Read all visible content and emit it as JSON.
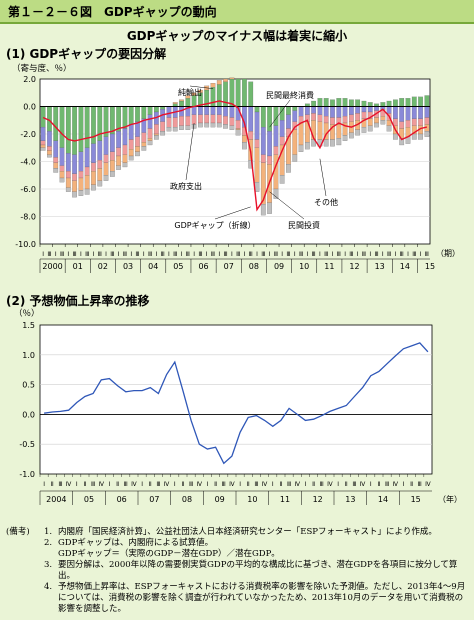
{
  "figure_title": "第１－２－６図　GDPギャップの動向",
  "main_title": "GDPギャップのマイナス幅は着実に縮小",
  "section1_title": "(1)  GDPギャップの要因分解",
  "section2_title": "(2)  予想物価上昇率の推移",
  "notes_label": "(備考)",
  "notes": [
    {
      "num": "1.",
      "text": "内閣府「国民経済計算」、公益社団法人日本経済研究センター「ESPフォーキャスト」により作成。"
    },
    {
      "num": "2.",
      "text": "GDPギャップは、内閣府による試算値。"
    },
    {
      "num": "",
      "text": "GDPギャップ＝（実際のGDP－潜在GDP）／潜在GDP。"
    },
    {
      "num": "3.",
      "text": "要因分解は、2000年以降の需要側実質GDPの平均的な構成比に基づき、潜在GDPを各項目に按分して算出。"
    },
    {
      "num": "4.",
      "text": "予想物価上昇率は、ESPフォーキャストにおける消費税率の影響を除いた予測値。ただし、2013年4～9月については、消費税の影響を除く調査が行われていなかったため、2013年10月のデータを用いて消費税の影響を調整した。"
    }
  ],
  "chart_data": [
    {
      "type": "bar",
      "subtype": "stacked bar with line",
      "title": "(1)  GDPギャップの要因分解",
      "ylabel": "（寄与度、％）",
      "xlabel": "（期）",
      "ylim": [
        -10,
        2
      ],
      "yticks": [
        "2.0",
        "0.0",
        "-2.0",
        "-4.0",
        "-6.0",
        "-8.0",
        "-10.0"
      ],
      "quarter_marks": [
        "Ⅰ",
        "Ⅲ"
      ],
      "year_labels": [
        "2000",
        "01",
        "02",
        "03",
        "04",
        "05",
        "06",
        "07",
        "08",
        "09",
        "10",
        "11",
        "12",
        "13",
        "14",
        "15"
      ],
      "annotations": [
        "純輸出",
        "民間最終消費",
        "政府支出",
        "GDPギャップ（折線）",
        "民間投資",
        "その他"
      ],
      "colors": {
        "net_exports": "#70b870",
        "consumption": "#8a8ad8",
        "government": "#ef9a9a",
        "investment": "#f3b27c",
        "other": "#bfbfbf",
        "gap": "#e8102a"
      },
      "series": [
        {
          "name": "純輸出",
          "values": [
            -1.5,
            -1.8,
            -2.5,
            -3.0,
            -3.4,
            -3.5,
            -3.3,
            -3.0,
            -2.7,
            -2.5,
            -2.2,
            -2.0,
            -1.8,
            -1.6,
            -1.3,
            -1.1,
            -0.9,
            -0.6,
            -0.4,
            -0.2,
            0.0,
            0.2,
            0.4,
            0.6,
            0.8,
            1.0,
            1.2,
            1.4,
            1.6,
            1.8,
            2.0,
            2.0,
            2.0,
            1.8,
            -0.4,
            -1.5,
            -1.8,
            -1.4,
            -1.0,
            -0.6,
            -0.3,
            0.0,
            0.2,
            0.4,
            0.6,
            0.6,
            0.5,
            0.6,
            0.6,
            0.5,
            0.5,
            0.4,
            0.3,
            0.2,
            0.3,
            0.4,
            0.5,
            0.6,
            0.6,
            0.7,
            0.7,
            0.8
          ]
        },
        {
          "name": "民間最終消費",
          "values": [
            -1.0,
            -1.1,
            -1.2,
            -1.3,
            -1.3,
            -1.4,
            -1.4,
            -1.4,
            -1.4,
            -1.4,
            -1.3,
            -1.3,
            -1.2,
            -1.2,
            -1.1,
            -1.1,
            -1.0,
            -1.0,
            -0.9,
            -0.9,
            -0.8,
            -0.8,
            -0.7,
            -0.7,
            -0.6,
            -0.6,
            -0.6,
            -0.6,
            -0.6,
            -0.7,
            -0.8,
            -1.0,
            -1.5,
            -1.8,
            -2.0,
            -2.0,
            -1.8,
            -1.5,
            -1.2,
            -1.0,
            -0.8,
            -0.7,
            -0.6,
            -0.5,
            -0.6,
            -0.7,
            -0.8,
            -0.8,
            -0.7,
            -0.6,
            -0.5,
            -0.4,
            -0.4,
            -0.3,
            -0.2,
            -0.5,
            -0.9,
            -1.1,
            -1.0,
            -0.9,
            -0.9,
            -0.8
          ]
        },
        {
          "name": "政府支出",
          "values": [
            -0.3,
            -0.3,
            -0.4,
            -0.4,
            -0.5,
            -0.5,
            -0.5,
            -0.6,
            -0.6,
            -0.6,
            -0.6,
            -0.6,
            -0.6,
            -0.7,
            -0.7,
            -0.7,
            -0.7,
            -0.7,
            -0.7,
            -0.7,
            -0.7,
            -0.7,
            -0.7,
            -0.7,
            -0.7,
            -0.6,
            -0.6,
            -0.6,
            -0.6,
            -0.6,
            -0.6,
            -0.6,
            -0.6,
            -0.6,
            -0.6,
            -0.6,
            -0.6,
            -0.6,
            -0.6,
            -0.6,
            -0.6,
            -0.5,
            -0.5,
            -0.5,
            -0.5,
            -0.5,
            -0.5,
            -0.5,
            -0.5,
            -0.5,
            -0.5,
            -0.5,
            -0.5,
            -0.5,
            -0.5,
            -0.5,
            -0.5,
            -0.5,
            -0.5,
            -0.5,
            -0.5,
            -0.5
          ]
        },
        {
          "name": "民間投資",
          "values": [
            -0.2,
            -0.3,
            -0.4,
            -0.5,
            -0.7,
            -0.8,
            -0.9,
            -1.0,
            -1.0,
            -0.9,
            -0.9,
            -0.8,
            -0.7,
            -0.6,
            -0.5,
            -0.4,
            -0.3,
            -0.2,
            -0.1,
            0.0,
            0.0,
            0.1,
            0.1,
            0.2,
            0.2,
            0.2,
            0.3,
            0.3,
            0.3,
            0.2,
            0.1,
            -0.1,
            -0.5,
            -1.5,
            -2.5,
            -3.0,
            -2.8,
            -2.5,
            -2.2,
            -2.0,
            -1.8,
            -1.6,
            -1.5,
            -1.4,
            -1.3,
            -1.2,
            -1.1,
            -1.0,
            -0.9,
            -0.8,
            -0.7,
            -0.6,
            -0.5,
            -0.4,
            -0.3,
            -0.4,
            -0.6,
            -0.7,
            -0.7,
            -0.6,
            -0.6,
            -0.5
          ]
        },
        {
          "name": "その他",
          "values": [
            -0.2,
            -0.2,
            -0.3,
            -0.3,
            -0.3,
            -0.4,
            -0.4,
            -0.4,
            -0.4,
            -0.4,
            -0.4,
            -0.4,
            -0.3,
            -0.3,
            -0.3,
            -0.3,
            -0.3,
            -0.3,
            -0.3,
            -0.3,
            -0.3,
            -0.3,
            -0.3,
            -0.3,
            -0.3,
            -0.3,
            -0.3,
            -0.3,
            -0.3,
            -0.3,
            -0.3,
            -0.4,
            -0.5,
            -0.6,
            -0.7,
            -0.8,
            -0.8,
            -0.7,
            -0.6,
            -0.6,
            -0.5,
            -0.5,
            -0.5,
            -0.5,
            -0.5,
            -0.5,
            -0.5,
            -0.5,
            -0.4,
            -0.4,
            -0.4,
            -0.4,
            -0.4,
            -0.3,
            -0.3,
            -0.4,
            -0.4,
            -0.5,
            -0.5,
            -0.4,
            -0.4,
            -0.4
          ]
        },
        {
          "name": "GDPギャップ（折線）",
          "values": [
            -0.8,
            -1.0,
            -1.5,
            -2.0,
            -2.4,
            -2.5,
            -2.4,
            -2.3,
            -2.2,
            -2.0,
            -1.9,
            -1.8,
            -1.6,
            -1.5,
            -1.3,
            -1.2,
            -1.0,
            -0.9,
            -0.8,
            -0.6,
            -0.5,
            -0.4,
            -0.3,
            -0.1,
            0.0,
            0.1,
            0.2,
            0.3,
            0.4,
            0.3,
            0.2,
            -0.1,
            -1.2,
            -3.3,
            -7.5,
            -6.8,
            -5.5,
            -4.3,
            -3.2,
            -2.2,
            -1.5,
            -1.2,
            -1.0,
            -2.3,
            -3.0,
            -2.0,
            -1.5,
            -1.2,
            -1.4,
            -1.5,
            -1.3,
            -1.0,
            -0.8,
            -0.5,
            -0.2,
            -0.7,
            -1.7,
            -2.4,
            -2.2,
            -1.9,
            -1.6,
            -1.5
          ]
        }
      ]
    },
    {
      "type": "line",
      "title": "(2)  予想物価上昇率の推移",
      "ylabel": "（％）",
      "xlabel": "（年）",
      "ylim": [
        -1.0,
        1.5
      ],
      "yticks": [
        "1.5",
        "1.0",
        "0.5",
        "0.0",
        "-0.5",
        "-1.0"
      ],
      "quarter_marks": [
        "Ⅰ",
        "Ⅱ",
        "Ⅲ",
        "Ⅳ"
      ],
      "year_labels": [
        "2004",
        "05",
        "06",
        "07",
        "08",
        "09",
        "10",
        "11",
        "12",
        "13",
        "14",
        "15"
      ],
      "values": [
        0.02,
        0.04,
        0.05,
        0.07,
        0.2,
        0.3,
        0.35,
        0.58,
        0.6,
        0.48,
        0.38,
        0.4,
        0.4,
        0.45,
        0.35,
        0.67,
        0.88,
        0.4,
        -0.1,
        -0.5,
        -0.58,
        -0.55,
        -0.82,
        -0.7,
        -0.3,
        -0.05,
        -0.02,
        -0.1,
        -0.2,
        -0.1,
        0.1,
        0.0,
        -0.1,
        -0.08,
        -0.02,
        0.05,
        0.1,
        0.15,
        0.3,
        0.45,
        0.65,
        0.72,
        0.85,
        0.98,
        1.1,
        1.15,
        1.2,
        1.05
      ]
    }
  ]
}
